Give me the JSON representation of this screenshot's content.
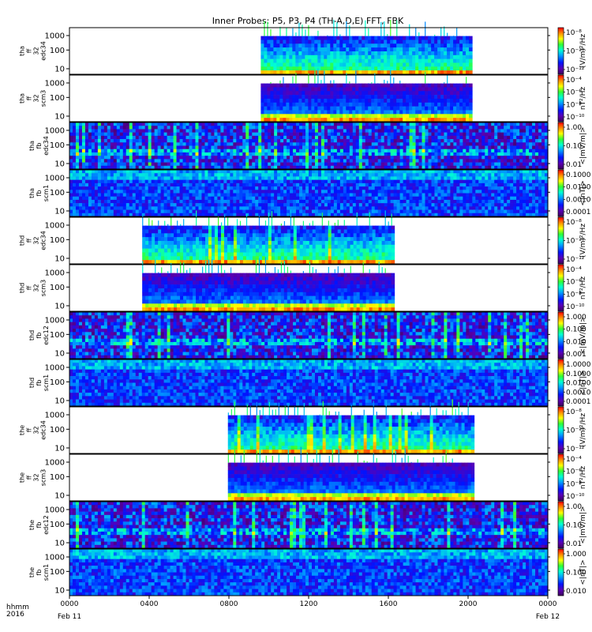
{
  "chart_data": {
    "type": "heatmap",
    "title": "Inner Probes: P5, P3, P4 (TH-A,D,E) FFT, FBK",
    "x_axis": {
      "ticks": [
        "0000",
        "0400",
        "0800",
        "1200",
        "1600",
        "2000",
        "0000"
      ],
      "tick_hours": [
        0,
        4,
        8,
        12,
        16,
        20,
        24
      ],
      "date_start": "Feb 11",
      "date_end": "Feb 12",
      "corner_label_1": "hhmm",
      "corner_label_2": "2016"
    },
    "y_ticks_wide": [
      "1000",
      "100",
      "10"
    ],
    "y_ticks_short": [
      "1000",
      "100",
      "10"
    ],
    "panels": [
      {
        "id": "tha_ff_32_edc34",
        "label": [
          "tha",
          "ff",
          "32",
          "edc34"
        ],
        "kind": "fft_e",
        "start_hour": 9.6,
        "end_hour": 20.2,
        "bg": "white",
        "unit": "(V/m)²/Hz",
        "cb_ticks": [
          "10⁻⁸",
          "10⁻¹⁰",
          "10⁻¹²"
        ]
      },
      {
        "id": "tha_ff_32_scm3",
        "label": [
          "tha",
          "ff",
          "32",
          "scm3"
        ],
        "kind": "fft_b",
        "start_hour": 9.6,
        "end_hour": 20.2,
        "bg": "white",
        "unit": "nT²/Hz",
        "cb_ticks": [
          "10⁻⁴",
          "10⁻⁶",
          "10⁻⁸",
          "10⁻¹⁰"
        ]
      },
      {
        "id": "tha_fb_edc34",
        "label": [
          "tha",
          "fb",
          "edc34"
        ],
        "kind": "fbk_e",
        "start_hour": 0,
        "end_hour": 24,
        "bg": "full",
        "unit": "<|mV/m|>",
        "cb_ticks": [
          "1.00",
          "0.10",
          "0.01"
        ]
      },
      {
        "id": "tha_fb_scm1",
        "label": [
          "tha",
          "fb",
          "scm1"
        ],
        "kind": "fbk_b",
        "start_hour": 0,
        "end_hour": 24,
        "bg": "full",
        "unit": "<|nT|>",
        "cb_ticks": [
          "0.1000",
          "0.0100",
          "0.0010",
          "0.0001"
        ]
      },
      {
        "id": "thd_ff_32_edc34",
        "label": [
          "thd",
          "ff",
          "32",
          "edc34"
        ],
        "kind": "fft_e",
        "start_hour": 3.65,
        "end_hour": 16.3,
        "bg": "white",
        "unit": "(V/m)²/Hz",
        "cb_ticks": [
          "10⁻⁸",
          "10⁻¹⁰",
          "10⁻¹²"
        ]
      },
      {
        "id": "thd_ff_32_scm3",
        "label": [
          "thd",
          "ff",
          "32",
          "scm3"
        ],
        "kind": "fft_b",
        "start_hour": 3.65,
        "end_hour": 16.3,
        "bg": "white",
        "unit": "nT²/Hz",
        "cb_ticks": [
          "10⁻⁴",
          "10⁻⁶",
          "10⁻⁸",
          "10⁻¹⁰"
        ]
      },
      {
        "id": "thd_fb_edc12",
        "label": [
          "thd",
          "fb",
          "edc12"
        ],
        "kind": "fbk_e",
        "start_hour": 0,
        "end_hour": 24,
        "bg": "full",
        "unit": "<|mV/m|>",
        "cb_ticks": [
          "1.000",
          "0.100",
          "0.010",
          "0.001"
        ]
      },
      {
        "id": "thd_fb_scm1",
        "label": [
          "thd",
          "fb",
          "scm1"
        ],
        "kind": "fbk_b",
        "start_hour": 0,
        "end_hour": 24,
        "bg": "full",
        "unit": "<|nT|>",
        "cb_ticks": [
          "1.0000",
          "0.1000",
          "0.0100",
          "0.0010",
          "0.0001"
        ]
      },
      {
        "id": "the_ff_32_edc34",
        "label": [
          "the",
          "ff",
          "32",
          "edc34"
        ],
        "kind": "fft_e",
        "start_hour": 7.95,
        "end_hour": 20.3,
        "bg": "white",
        "unit": "(V/m)²/Hz",
        "cb_ticks": [
          "10⁻⁸",
          "10⁻¹⁰",
          "10⁻¹²"
        ]
      },
      {
        "id": "the_ff_32_scm3",
        "label": [
          "the",
          "ff",
          "32",
          "scm3"
        ],
        "kind": "fft_b",
        "start_hour": 7.95,
        "end_hour": 20.3,
        "bg": "white",
        "unit": "nT²/Hz",
        "cb_ticks": [
          "10⁻⁴",
          "10⁻⁶",
          "10⁻⁸",
          "10⁻¹⁰"
        ]
      },
      {
        "id": "the_fb_edc12",
        "label": [
          "the",
          "fb",
          "edc12"
        ],
        "kind": "fbk_e",
        "start_hour": 0,
        "end_hour": 24,
        "bg": "full",
        "unit": "<|mV/m|>",
        "cb_ticks": [
          "1.00",
          "0.10",
          "0.01"
        ]
      },
      {
        "id": "the_fb_scm1",
        "label": [
          "the",
          "fb",
          "scm1"
        ],
        "kind": "fbk_b",
        "start_hour": 0,
        "end_hour": 24,
        "bg": "full",
        "unit": "<|nT|>",
        "cb_ticks": [
          "1.000",
          "0.100",
          "0.010"
        ]
      }
    ],
    "colorscale": "rainbow (purple to red)",
    "grid": false,
    "legend": "colorbar right of each panel"
  }
}
